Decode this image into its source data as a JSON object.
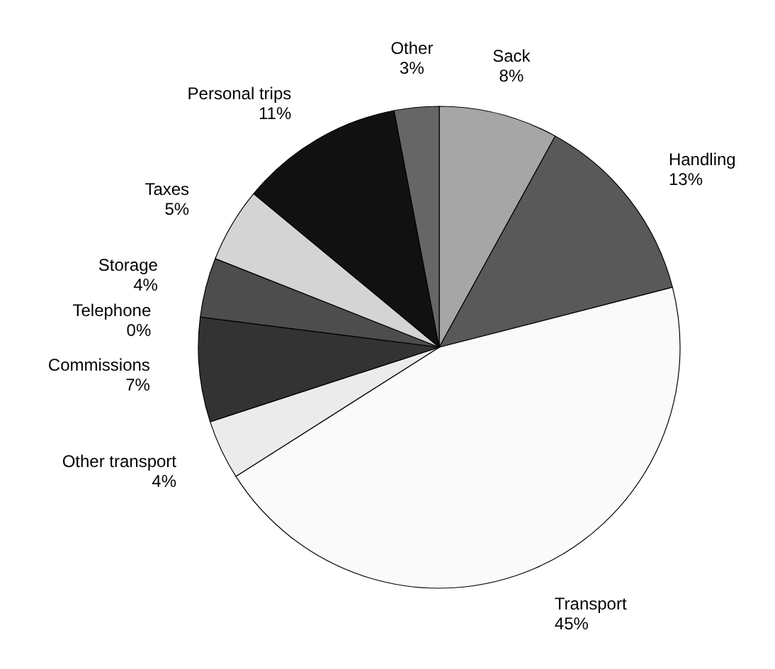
{
  "chart_data": {
    "type": "pie",
    "categories": [
      "Sack",
      "Handling",
      "Transport",
      "Other transport",
      "Commissions",
      "Telephone",
      "Storage",
      "Taxes",
      "Personal trips",
      "Other"
    ],
    "values": [
      8,
      13,
      45,
      4,
      7,
      0,
      4,
      5,
      11,
      3
    ],
    "value_labels": [
      "8%",
      "13%",
      "45%",
      "4%",
      "7%",
      "0%",
      "4%",
      "5%",
      "11%",
      "3%"
    ],
    "colors": [
      "#a6a6a6",
      "#595959",
      "#fafafa",
      "#ebebeb",
      "#333333",
      null,
      "#4d4d4d",
      "#d4d4d4",
      "#111111",
      "#666666"
    ]
  }
}
